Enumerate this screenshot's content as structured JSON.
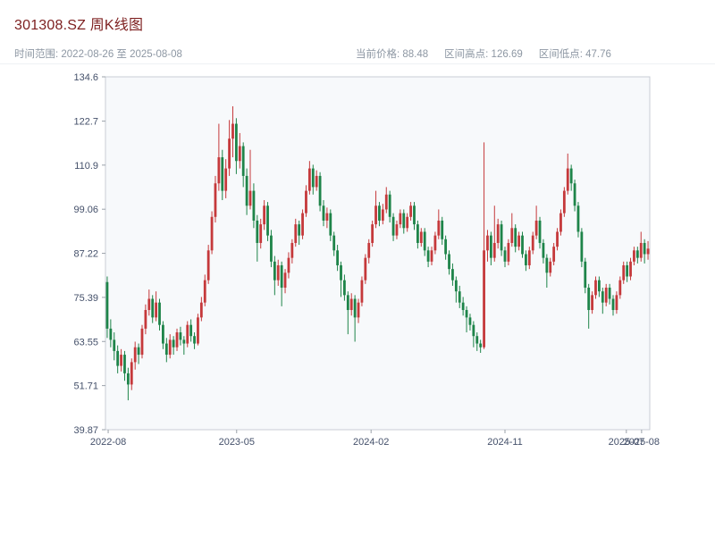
{
  "header": {
    "title": "301308.SZ 周K线图",
    "subtitle_left": "时间范围: 2022-08-26 至 2025-08-08",
    "stats": [
      "当前价格: 88.48",
      "区间高点: 126.69",
      "区间低点: 47.76"
    ]
  },
  "chart_data": {
    "type": "candlestick",
    "title": "301308.SZ 周K线图",
    "interval": "weekly",
    "date_range": {
      "start": "2022-08-26",
      "end": "2025-08-08"
    },
    "stats": {
      "current_price": 88.48,
      "range_high": 126.69,
      "range_low": 47.76
    },
    "ylim": [
      39.87,
      134.6
    ],
    "grid": false,
    "y_ticks": [
      {
        "v": 134.6,
        "label": "134.6"
      },
      {
        "v": 122.7,
        "label": "122.7"
      },
      {
        "v": 110.9,
        "label": "110.9"
      },
      {
        "v": 99.06,
        "label": "99.06"
      },
      {
        "v": 87.22,
        "label": "87.22"
      },
      {
        "v": 75.39,
        "label": "75.39"
      },
      {
        "v": 63.55,
        "label": "63.55"
      },
      {
        "v": 51.71,
        "label": "51.71"
      },
      {
        "v": 39.87,
        "label": "39.87"
      }
    ],
    "x_ticks": [
      {
        "label": "2022-08",
        "t": 0.005
      },
      {
        "label": "2023-05",
        "t": 0.241
      },
      {
        "label": "2024-02",
        "t": 0.488
      },
      {
        "label": "2024-11",
        "t": 0.734
      },
      {
        "label": "2025-07",
        "t": 0.957
      },
      {
        "label": "2025-08",
        "t": 0.985
      }
    ],
    "colors": {
      "up": "#c5393b",
      "down": "#1e8449",
      "frame": "#c8cdd4",
      "tick": "#9aa1a9",
      "plot_bg": "#f7f9fb"
    },
    "candle_format": [
      "open",
      "high",
      "low",
      "close"
    ],
    "candles": [
      [
        79.5,
        81,
        64.5,
        67
      ],
      [
        67,
        69.5,
        62,
        64
      ],
      [
        64,
        66,
        58.5,
        61
      ],
      [
        61,
        62.5,
        55,
        57
      ],
      [
        57,
        61.5,
        55.5,
        60
      ],
      [
        60,
        61,
        53,
        55
      ],
      [
        55,
        56.5,
        47.76,
        52
      ],
      [
        52,
        59,
        50.5,
        58
      ],
      [
        58,
        63.5,
        56,
        62
      ],
      [
        62,
        63,
        57.5,
        60
      ],
      [
        60,
        68,
        59,
        67
      ],
      [
        67,
        73.5,
        65.5,
        72
      ],
      [
        72,
        77.5,
        70.5,
        75
      ],
      [
        75,
        76,
        68.5,
        70
      ],
      [
        70,
        77,
        69,
        74
      ],
      [
        74,
        75,
        66.5,
        68
      ],
      [
        68,
        69,
        61.5,
        63
      ],
      [
        63,
        64.5,
        58,
        60
      ],
      [
        60,
        65.5,
        59,
        64
      ],
      [
        64,
        65,
        60,
        62
      ],
      [
        62,
        67,
        61,
        66
      ],
      [
        66,
        67.5,
        62.5,
        64
      ],
      [
        64,
        65,
        60,
        63
      ],
      [
        63,
        69,
        62,
        68
      ],
      [
        68,
        69.5,
        63.5,
        65
      ],
      [
        65,
        66,
        61.5,
        63
      ],
      [
        63,
        71,
        62.5,
        70
      ],
      [
        70,
        75.5,
        69,
        74
      ],
      [
        74,
        81.5,
        73,
        80
      ],
      [
        80,
        89.5,
        79,
        88
      ],
      [
        88,
        98.5,
        87,
        97
      ],
      [
        97,
        108,
        95.5,
        106
      ],
      [
        106,
        122,
        104,
        113
      ],
      [
        113,
        115,
        101.5,
        104
      ],
      [
        104,
        112.5,
        102,
        110
      ],
      [
        110,
        123,
        108,
        118
      ],
      [
        118,
        126.69,
        113,
        122
      ],
      [
        122,
        123.5,
        108.5,
        112
      ],
      [
        112,
        119.5,
        110,
        116
      ],
      [
        116,
        117,
        105,
        108
      ],
      [
        108,
        110,
        97.5,
        100
      ],
      [
        100,
        115,
        99,
        104
      ],
      [
        104,
        106,
        94,
        96
      ],
      [
        96,
        97.5,
        85,
        90
      ],
      [
        90,
        96.5,
        88.5,
        95
      ],
      [
        95,
        101.5,
        93.5,
        100
      ],
      [
        100,
        101,
        90.5,
        92
      ],
      [
        92,
        93.5,
        83.5,
        85
      ],
      [
        85,
        86.5,
        76,
        80
      ],
      [
        80,
        85.5,
        78.5,
        84
      ],
      [
        84,
        85,
        73,
        78
      ],
      [
        78,
        83,
        76.5,
        82
      ],
      [
        82,
        87.5,
        80.5,
        86
      ],
      [
        86,
        91,
        84.5,
        90
      ],
      [
        90,
        96.5,
        89,
        95
      ],
      [
        95,
        96,
        89.5,
        92
      ],
      [
        92,
        99,
        91,
        98
      ],
      [
        98,
        105.5,
        97,
        104
      ],
      [
        104,
        112,
        103,
        110
      ],
      [
        110,
        111,
        103,
        105
      ],
      [
        105,
        109.5,
        104,
        108
      ],
      [
        108,
        109,
        98.5,
        100
      ],
      [
        100,
        101.5,
        94.5,
        96
      ],
      [
        96,
        99.5,
        94,
        98
      ],
      [
        98,
        99,
        90.5,
        92
      ],
      [
        92,
        93,
        86.5,
        88
      ],
      [
        88,
        89.5,
        82.5,
        84
      ],
      [
        84,
        85,
        75.5,
        80
      ],
      [
        80,
        81.5,
        74.5,
        76
      ],
      [
        76,
        77,
        65.5,
        72
      ],
      [
        72,
        76.5,
        70.5,
        75
      ],
      [
        75,
        76,
        63.5,
        70
      ],
      [
        70,
        75,
        68.5,
        74
      ],
      [
        74,
        81,
        73,
        80
      ],
      [
        80,
        87,
        79,
        86
      ],
      [
        86,
        91,
        84.5,
        90
      ],
      [
        90,
        96,
        89,
        95
      ],
      [
        95,
        104,
        94,
        100
      ],
      [
        100,
        101,
        94.5,
        96
      ],
      [
        96,
        100.5,
        95,
        99
      ],
      [
        99,
        105,
        98,
        103
      ],
      [
        103,
        104,
        95.5,
        97
      ],
      [
        97,
        98,
        90.5,
        92
      ],
      [
        92,
        96,
        91,
        95
      ],
      [
        95,
        99,
        94,
        98
      ],
      [
        98,
        99,
        92.5,
        94
      ],
      [
        94,
        98,
        93,
        97
      ],
      [
        97,
        101,
        96,
        100
      ],
      [
        100,
        101,
        93.5,
        95
      ],
      [
        95,
        96,
        88.5,
        90
      ],
      [
        90,
        94,
        89,
        93
      ],
      [
        93,
        94,
        86.5,
        88
      ],
      [
        88,
        89,
        83.5,
        85
      ],
      [
        85,
        89,
        84,
        88
      ],
      [
        88,
        93,
        87,
        92
      ],
      [
        92,
        99,
        91,
        96
      ],
      [
        96,
        97,
        89.5,
        91
      ],
      [
        91,
        92,
        85.5,
        87
      ],
      [
        87,
        88,
        81.5,
        83
      ],
      [
        83,
        84.5,
        78.5,
        80
      ],
      [
        80,
        81,
        74,
        77
      ],
      [
        77,
        78.5,
        72.5,
        74
      ],
      [
        74,
        75.5,
        70.5,
        72
      ],
      [
        72,
        73,
        66,
        70
      ],
      [
        70,
        71,
        66.5,
        68
      ],
      [
        68,
        69,
        62,
        65
      ],
      [
        65,
        66,
        61,
        63
      ],
      [
        63,
        64,
        60.5,
        62
      ],
      [
        62,
        117,
        61.5,
        88
      ],
      [
        88,
        93.5,
        85,
        92
      ],
      [
        92,
        93,
        84,
        86
      ],
      [
        86,
        100,
        85,
        90
      ],
      [
        90,
        96.5,
        88.5,
        95
      ],
      [
        95,
        96,
        86.5,
        88
      ],
      [
        88,
        89,
        83.5,
        85
      ],
      [
        85,
        91,
        84,
        90
      ],
      [
        90,
        98,
        89,
        94
      ],
      [
        94,
        95,
        87.5,
        89
      ],
      [
        89,
        93,
        88,
        92
      ],
      [
        92,
        93,
        86,
        87
      ],
      [
        87,
        88,
        82.5,
        84
      ],
      [
        84,
        89,
        83,
        88
      ],
      [
        88,
        93,
        87,
        92
      ],
      [
        92,
        100,
        91,
        96
      ],
      [
        96,
        97,
        88.5,
        90
      ],
      [
        90,
        91,
        84.5,
        86
      ],
      [
        86,
        87,
        78,
        82
      ],
      [
        82,
        86,
        81,
        85
      ],
      [
        85,
        90,
        84,
        89
      ],
      [
        89,
        94,
        88,
        93
      ],
      [
        93,
        99,
        92,
        98
      ],
      [
        98,
        105,
        97,
        104
      ],
      [
        104,
        114,
        103,
        110
      ],
      [
        110,
        111,
        104,
        106
      ],
      [
        106,
        107,
        98.5,
        100
      ],
      [
        100,
        101,
        91.5,
        93
      ],
      [
        93,
        94,
        83.5,
        85
      ],
      [
        85,
        86,
        76.5,
        78
      ],
      [
        78,
        79,
        67,
        72
      ],
      [
        72,
        77,
        71,
        76
      ],
      [
        76,
        81,
        75,
        80
      ],
      [
        80,
        81,
        75.5,
        77
      ],
      [
        77,
        78,
        71,
        74
      ],
      [
        74,
        79,
        73,
        78
      ],
      [
        78,
        79,
        73.5,
        75
      ],
      [
        75,
        76,
        70.5,
        72
      ],
      [
        72,
        77,
        71,
        76
      ],
      [
        76,
        81,
        75,
        80
      ],
      [
        80,
        85,
        79,
        84
      ],
      [
        84,
        85,
        79.5,
        81
      ],
      [
        81,
        86,
        80,
        85
      ],
      [
        85,
        89,
        84,
        88
      ],
      [
        88,
        89,
        84.5,
        86
      ],
      [
        86,
        93,
        85,
        90
      ],
      [
        90,
        91,
        84.5,
        87
      ],
      [
        87,
        90.5,
        85.5,
        88.48
      ]
    ]
  }
}
